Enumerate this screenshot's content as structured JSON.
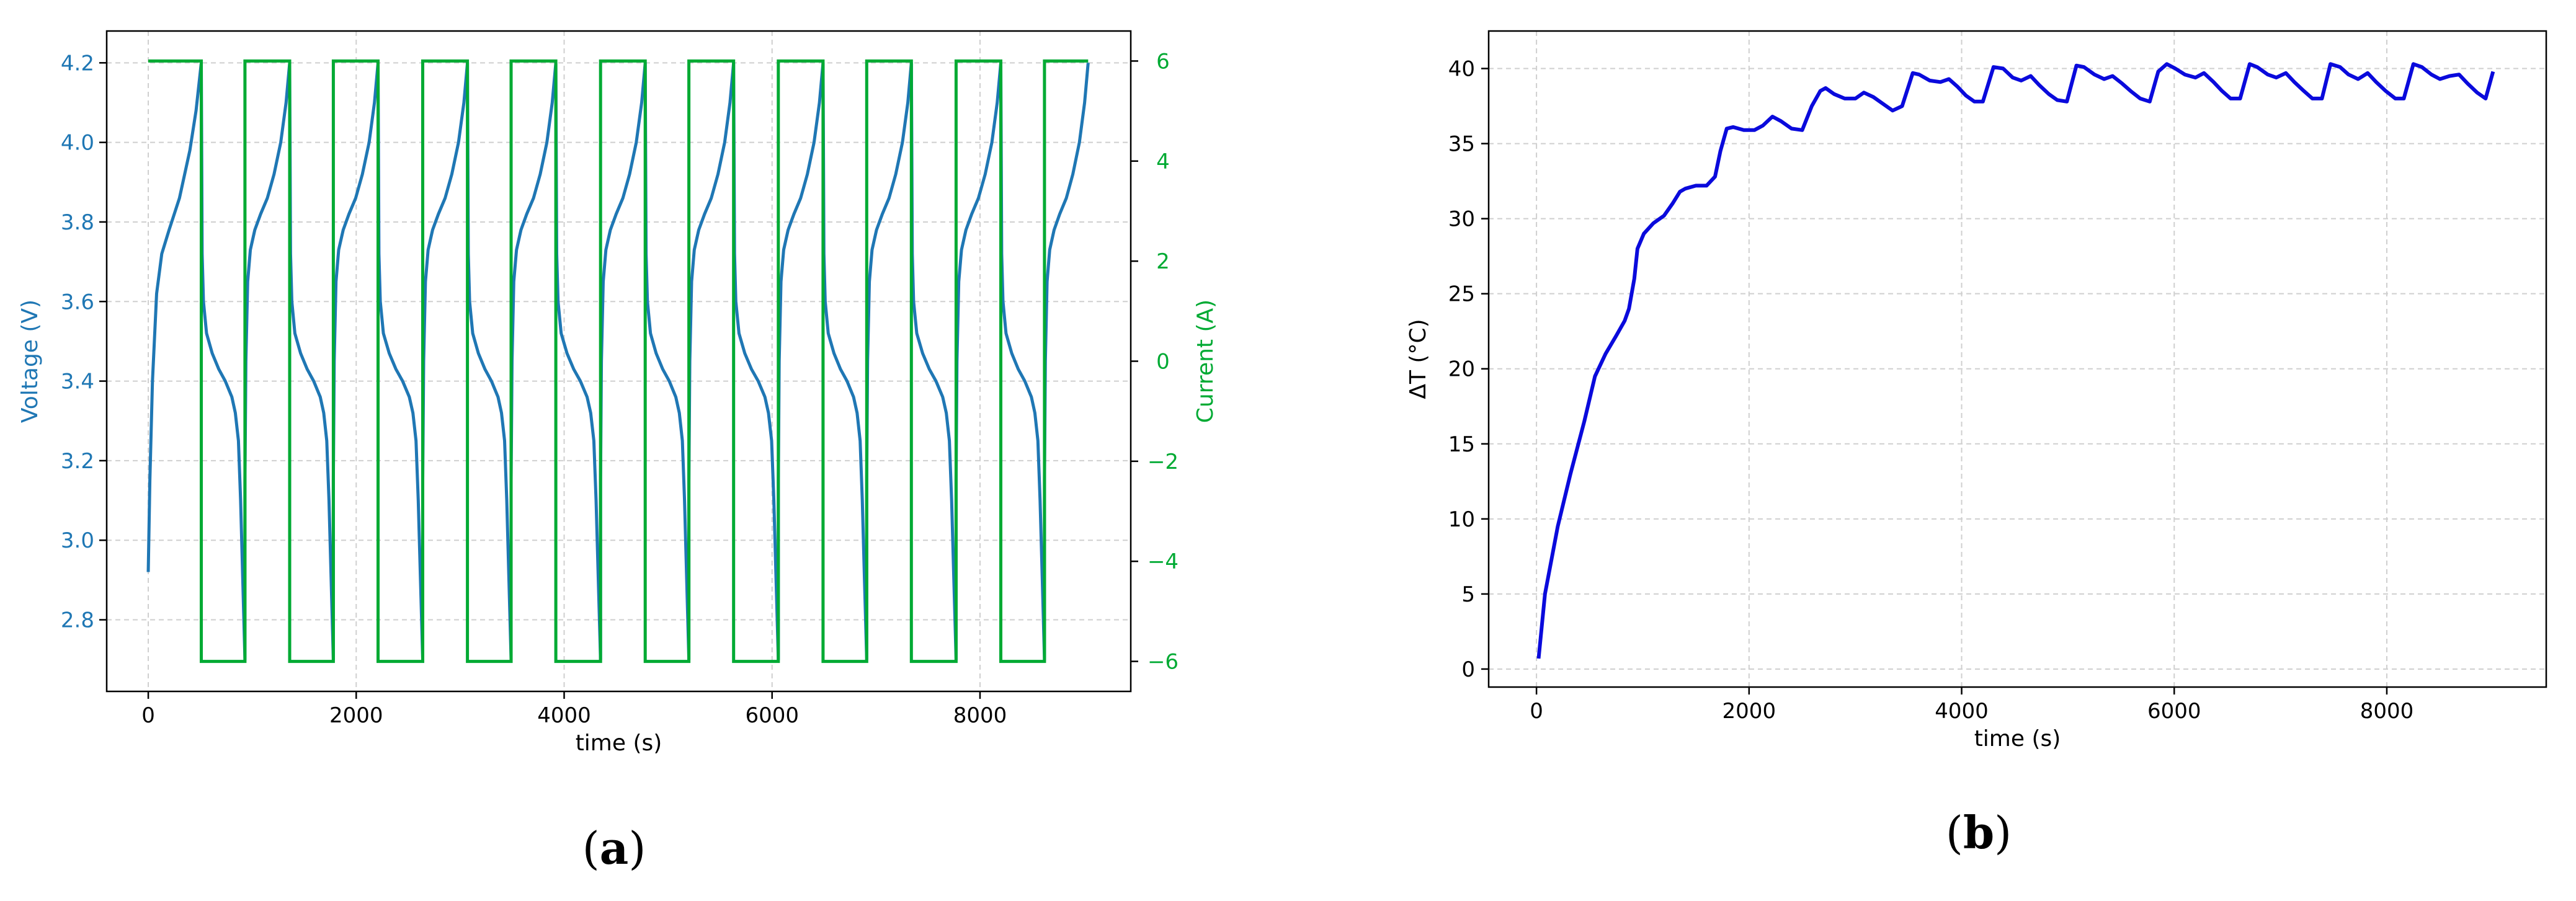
{
  "chart_data": [
    {
      "id": "a",
      "type": "line",
      "panel_label": "(a)",
      "panel_label_letter": "a",
      "title": "",
      "xlabel": "time (s)",
      "ylabel": "Voltage (V)",
      "ylabel_right": "Current (A)",
      "xlim": [
        -400,
        9450
      ],
      "ylim": [
        2.62,
        4.28
      ],
      "ylim_right": [
        -6.6,
        6.6
      ],
      "xticks": [
        "0",
        "2000",
        "4000",
        "6000",
        "8000"
      ],
      "yticks": [
        "2.8",
        "3.0",
        "3.2",
        "3.4",
        "3.6",
        "3.8",
        "4.0",
        "4.2"
      ],
      "yticks_right": [
        "−6",
        "−4",
        "−2",
        "0",
        "2",
        "4",
        "6"
      ],
      "grid": true,
      "legend": "none",
      "colors": {
        "voltage": "#1f77b4",
        "current": "#00aa33"
      },
      "cycles": {
        "t0": 0,
        "first_charge_end": 510,
        "discharge_end": [
          930,
          1780,
          2640,
          3490,
          4350,
          5200,
          6060,
          6910,
          7770,
          8620
        ],
        "charge_end": [
          1360,
          2210,
          3070,
          3920,
          4780,
          5630,
          6490,
          7340,
          8200,
          9040
        ],
        "t_end": 9040
      },
      "voltage_profile": {
        "first_charge": {
          "t": [
            0,
            15,
            40,
            80,
            130,
            200,
            300,
            400,
            460,
            510
          ],
          "v": [
            2.92,
            3.15,
            3.4,
            3.62,
            3.72,
            3.78,
            3.86,
            3.98,
            4.08,
            4.2
          ]
        },
        "charge": {
          "f": [
            0,
            0.02,
            0.06,
            0.12,
            0.22,
            0.35,
            0.5,
            0.65,
            0.8,
            0.92,
            1
          ],
          "v": [
            3.15,
            3.45,
            3.65,
            3.73,
            3.78,
            3.82,
            3.86,
            3.92,
            4.0,
            4.1,
            4.2
          ]
        },
        "discharge": {
          "f": [
            0,
            0.02,
            0.05,
            0.12,
            0.25,
            0.4,
            0.55,
            0.7,
            0.78,
            0.85,
            0.9,
            0.95,
            1
          ],
          "v": [
            4.2,
            3.72,
            3.6,
            3.52,
            3.47,
            3.43,
            3.4,
            3.36,
            3.32,
            3.25,
            3.1,
            2.9,
            2.7
          ]
        }
      },
      "current_levels": {
        "charge": 6,
        "discharge": -6
      }
    },
    {
      "id": "b",
      "type": "line",
      "panel_label": "(b)",
      "panel_label_letter": "b",
      "title": "",
      "xlabel": "time (s)",
      "ylabel": "ΔT (°C)",
      "xlim": [
        -450,
        9500
      ],
      "ylim": [
        -1.2,
        42.5
      ],
      "xticks": [
        "0",
        "2000",
        "4000",
        "6000",
        "8000"
      ],
      "yticks": [
        "0",
        "5",
        "10",
        "15",
        "20",
        "25",
        "30",
        "35",
        "40"
      ],
      "grid": true,
      "legend": "none",
      "colors": {
        "line": "#0a0adc"
      },
      "series": [
        {
          "x": [
            20,
            80,
            200,
            320,
            450,
            550,
            650,
            750,
            830,
            870,
            920,
            950,
            1010,
            1100,
            1200,
            1280,
            1350,
            1400,
            1500,
            1600,
            1680,
            1730,
            1790,
            1850,
            1950,
            2050,
            2130,
            2220,
            2300,
            2400,
            2500,
            2590,
            2670,
            2720,
            2800,
            2900,
            3000,
            3080,
            3170,
            3250,
            3350,
            3440,
            3540,
            3600,
            3700,
            3800,
            3880,
            3960,
            4040,
            4120,
            4200,
            4300,
            4390,
            4480,
            4560,
            4650,
            4730,
            4820,
            4900,
            4990,
            5080,
            5150,
            5250,
            5340,
            5420,
            5510,
            5590,
            5680,
            5770,
            5850,
            5930,
            6010,
            6100,
            6200,
            6280,
            6370,
            6450,
            6530,
            6620,
            6710,
            6780,
            6880,
            6960,
            7050,
            7130,
            7220,
            7300,
            7390,
            7470,
            7560,
            7640,
            7730,
            7820,
            7900,
            7990,
            8080,
            8160,
            8250,
            8330,
            8420,
            8500,
            8590,
            8680,
            8760,
            8850,
            8930,
            9000
          ],
          "y": [
            0.7,
            5,
            9.5,
            13,
            16.5,
            19.5,
            21,
            22.2,
            23.2,
            24,
            26,
            28,
            29,
            29.7,
            30.2,
            31,
            31.8,
            32,
            32.2,
            32.2,
            32.8,
            34.5,
            36,
            36.1,
            35.9,
            35.9,
            36.2,
            36.8,
            36.5,
            36,
            35.9,
            37.5,
            38.5,
            38.7,
            38.3,
            38,
            38,
            38.4,
            38.1,
            37.7,
            37.2,
            37.5,
            39.7,
            39.6,
            39.2,
            39.1,
            39.3,
            38.8,
            38.2,
            37.8,
            37.8,
            40.1,
            40,
            39.4,
            39.2,
            39.5,
            38.9,
            38.3,
            37.9,
            37.8,
            40.2,
            40.1,
            39.6,
            39.3,
            39.5,
            39.0,
            38.5,
            38.0,
            37.8,
            39.8,
            40.3,
            40.0,
            39.6,
            39.4,
            39.7,
            39.1,
            38.5,
            38.0,
            38.0,
            40.3,
            40.1,
            39.6,
            39.4,
            39.7,
            39.1,
            38.5,
            38.0,
            38.0,
            40.3,
            40.1,
            39.6,
            39.3,
            39.7,
            39.1,
            38.5,
            38.0,
            38.0,
            40.3,
            40.1,
            39.6,
            39.3,
            39.5,
            39.6,
            39.0,
            38.4,
            38.0,
            39.8
          ]
        }
      ]
    }
  ]
}
